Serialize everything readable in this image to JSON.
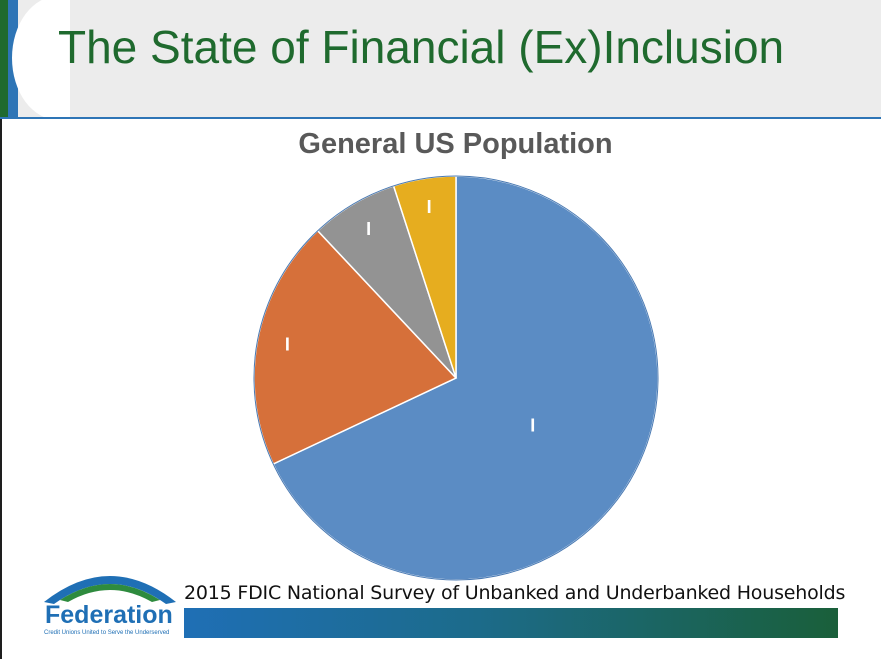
{
  "slide": {
    "title": "The State of Financial (Ex)Inclusion",
    "source_note": "2015 FDIC National Survey of Unbanked and Underbanked Households",
    "logo_name": "Federation",
    "logo_tagline": "Credit Unions United to Serve the Underserved"
  },
  "chart_data": {
    "type": "pie",
    "title": "General US Population",
    "slices": [
      {
        "value": 68,
        "color": "#5b8cc4",
        "data_label": "I"
      },
      {
        "value": 20,
        "color": "#d6703a",
        "data_label": "I"
      },
      {
        "value": 7,
        "color": "#939393",
        "data_label": "I"
      },
      {
        "value": 5,
        "color": "#e6ad1f",
        "data_label": "I"
      }
    ]
  }
}
